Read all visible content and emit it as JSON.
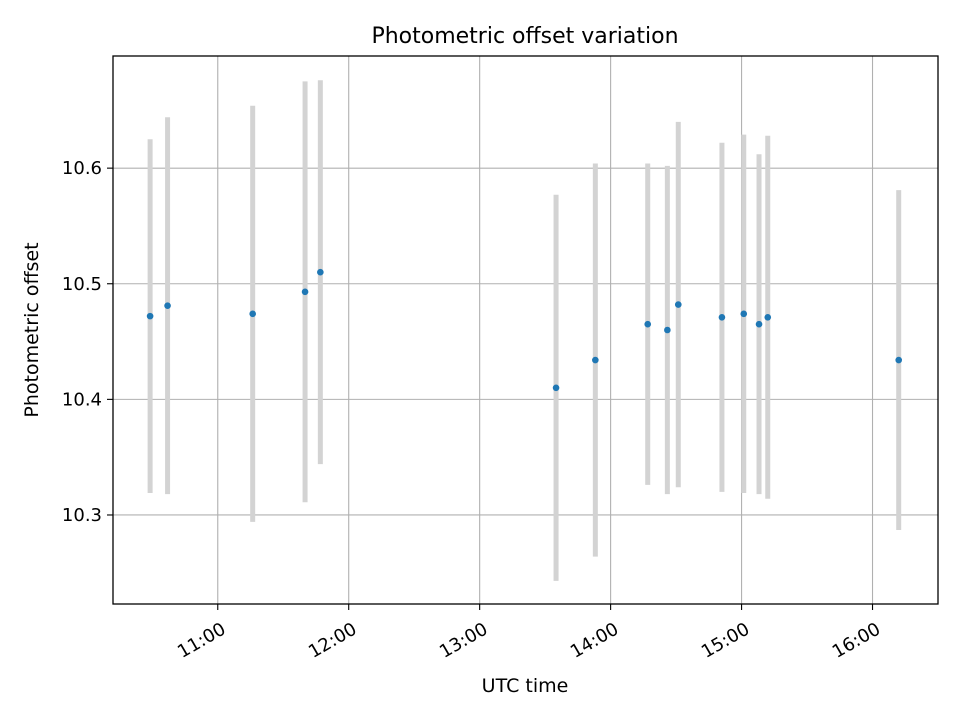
{
  "chart_data": {
    "type": "scatter",
    "title": "Photometric offset variation",
    "xlabel": "UTC time",
    "ylabel": "Photometric offset",
    "x_ticks": [
      "11:00",
      "12:00",
      "13:00",
      "14:00",
      "15:00",
      "16:00"
    ],
    "y_ticks": [
      "10.3",
      "10.4",
      "10.5",
      "10.6"
    ],
    "xlim": [
      "10:12",
      "16:30"
    ],
    "ylim": [
      10.223,
      10.697
    ],
    "grid": true,
    "colors": {
      "point": "#1f77b4",
      "errorbar": "#d3d3d3",
      "grid": "#b0b0b0"
    },
    "series": [
      {
        "points": [
          {
            "x": "10:29",
            "y": 10.472,
            "err": 0.153
          },
          {
            "x": "10:37",
            "y": 10.481,
            "err": 0.163
          },
          {
            "x": "11:16",
            "y": 10.474,
            "err": 0.18
          },
          {
            "x": "11:40",
            "y": 10.493,
            "err": 0.182
          },
          {
            "x": "11:47",
            "y": 10.51,
            "err": 0.166
          },
          {
            "x": "13:35",
            "y": 10.41,
            "err": 0.167
          },
          {
            "x": "13:53",
            "y": 10.434,
            "err": 0.17
          },
          {
            "x": "14:17",
            "y": 10.465,
            "err": 0.139
          },
          {
            "x": "14:26",
            "y": 10.46,
            "err": 0.142
          },
          {
            "x": "14:31",
            "y": 10.482,
            "err": 0.158
          },
          {
            "x": "14:51",
            "y": 10.471,
            "err": 0.151
          },
          {
            "x": "15:01",
            "y": 10.474,
            "err": 0.155
          },
          {
            "x": "15:08",
            "y": 10.465,
            "err": 0.147
          },
          {
            "x": "15:12",
            "y": 10.471,
            "err": 0.157
          },
          {
            "x": "16:12",
            "y": 10.434,
            "err": 0.147
          }
        ]
      }
    ]
  }
}
